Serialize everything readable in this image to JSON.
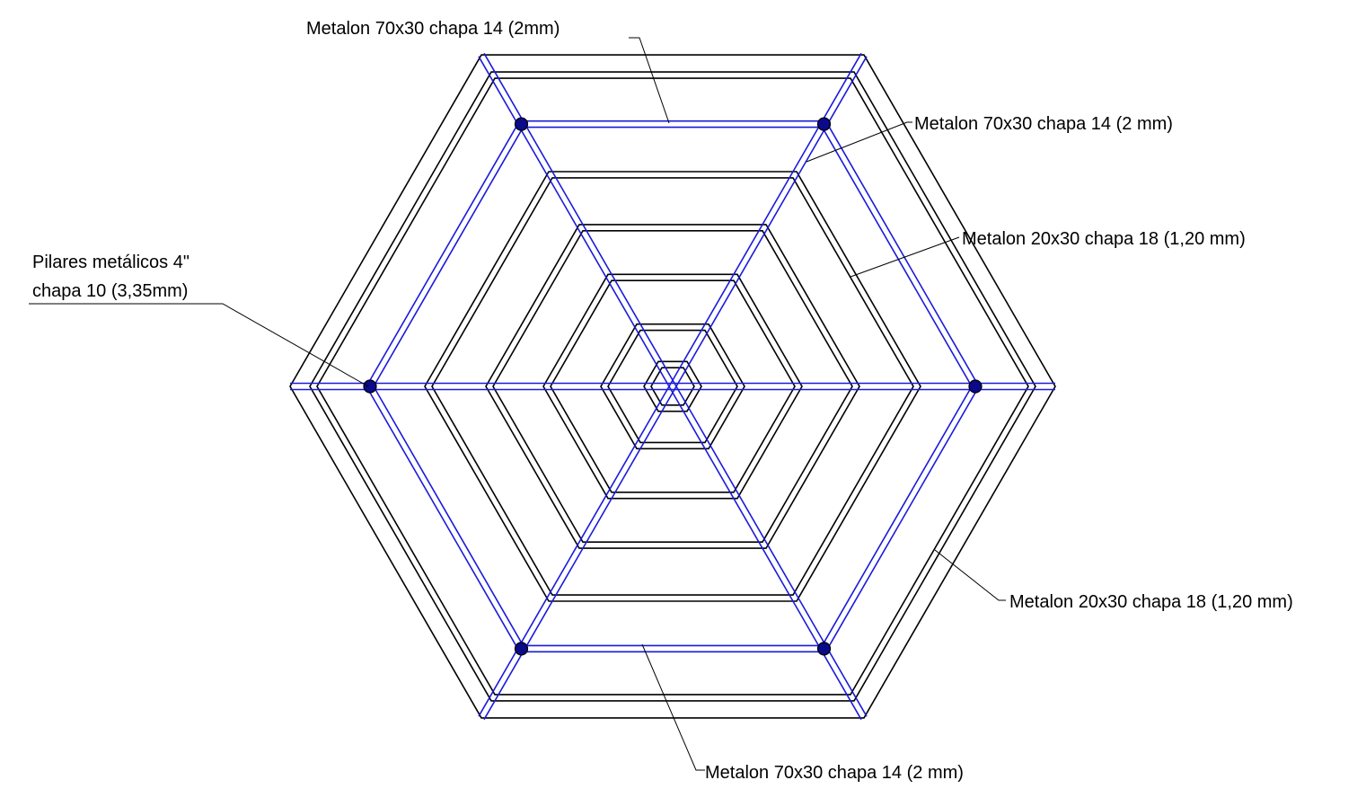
{
  "diagram": {
    "colors": {
      "structure": "#000000",
      "beams": "#1a1adb",
      "pillars": "#0a0a8a",
      "background": "#ffffff"
    },
    "labels": {
      "top_beam": "Metalon 70x30 chapa 14 (2mm)",
      "diagonal_beam": "Metalon 70x30 chapa 14 (2 mm)",
      "upper_ring": "Metalon 20x30 chapa 18 (1,20 mm)",
      "pillars_line1": "Pilares metálicos 4\"",
      "pillars_line2": "chapa 10 (3,35mm)",
      "outer_ring": "Metalon 20x30 chapa 18 (1,20 mm)",
      "bottom_beam": "Metalon 70x30 chapa 14 (2 mm)"
    }
  }
}
